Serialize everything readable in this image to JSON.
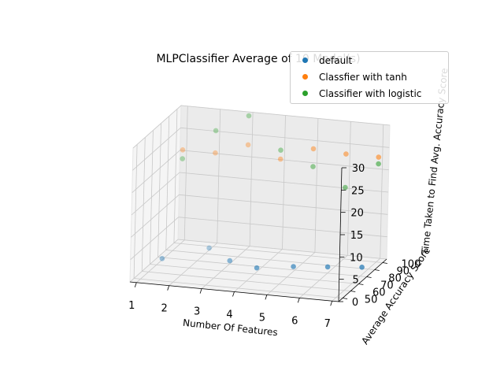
{
  "chart_data": {
    "type": "scatter",
    "projection": "3d",
    "title": "MLPClassifier Average of 10 Model(s)",
    "xlabel": "Number Of Features",
    "ylabel": "Average Accuracy Score",
    "zlabel": "Time Taken to Find Avg. Accuracy Score",
    "x_ticks": [
      "1",
      "2",
      "3",
      "4",
      "5",
      "6",
      "7"
    ],
    "y_ticks": [
      "50",
      "60",
      "70",
      "80",
      "90",
      "100"
    ],
    "z_ticks": [
      "0",
      "5",
      "10",
      "15",
      "20",
      "25",
      "30"
    ],
    "xlim": [
      0.8,
      7.2
    ],
    "ylim": [
      45,
      105
    ],
    "zlim": [
      0,
      30
    ],
    "grid": true,
    "legend_position": "top-right",
    "series": [
      {
        "name": "default",
        "color": "#1f77b4",
        "points": [
          {
            "x": 1,
            "y": 77,
            "z": 0.3
          },
          {
            "x": 2,
            "y": 95,
            "z": 0.5
          },
          {
            "x": 3,
            "y": 80,
            "z": 0.7
          },
          {
            "x": 4,
            "y": 73,
            "z": 0.9
          },
          {
            "x": 5,
            "y": 78,
            "z": 1.1
          },
          {
            "x": 6,
            "y": 80,
            "z": 1.4
          },
          {
            "x": 7,
            "y": 82,
            "z": 1.7
          }
        ]
      },
      {
        "name": "Classfier with tanh",
        "color": "#ff7f0e",
        "points": [
          {
            "x": 1,
            "y": 100,
            "z": 21.0
          },
          {
            "x": 2,
            "y": 100,
            "z": 21.0
          },
          {
            "x": 3,
            "y": 100,
            "z": 23.5
          },
          {
            "x": 4,
            "y": 100,
            "z": 21.0
          },
          {
            "x": 5,
            "y": 100,
            "z": 24.0
          },
          {
            "x": 6,
            "y": 100,
            "z": 23.5
          },
          {
            "x": 7,
            "y": 100,
            "z": 23.5
          }
        ]
      },
      {
        "name": "Classifier with logistic",
        "color": "#2ca02c",
        "points": [
          {
            "x": 1,
            "y": 100,
            "z": 19.0
          },
          {
            "x": 2,
            "y": 100,
            "z": 26.0
          },
          {
            "x": 3,
            "y": 100,
            "z": 30.0
          },
          {
            "x": 4,
            "y": 100,
            "z": 23.0
          },
          {
            "x": 5,
            "y": 100,
            "z": 20.0
          },
          {
            "x": 6,
            "y": 100,
            "z": 16.0
          },
          {
            "x": 7,
            "y": 100,
            "z": 22.0
          }
        ]
      }
    ]
  }
}
